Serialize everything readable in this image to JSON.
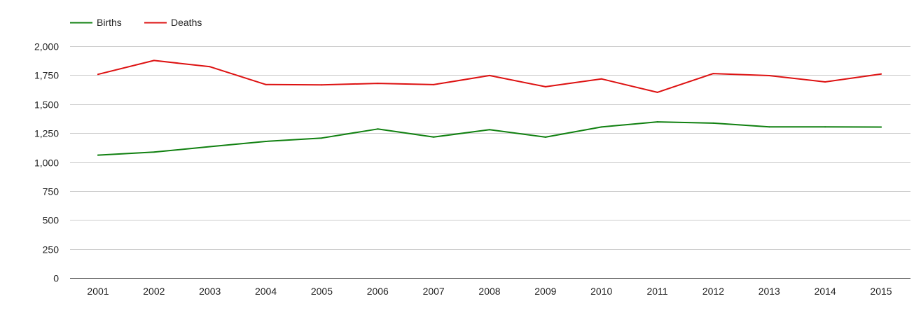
{
  "chart_data": {
    "type": "line",
    "title": "",
    "xlabel": "",
    "ylabel": "",
    "categories": [
      "2001",
      "2002",
      "2003",
      "2004",
      "2005",
      "2006",
      "2007",
      "2008",
      "2009",
      "2010",
      "2011",
      "2012",
      "2013",
      "2014",
      "2015"
    ],
    "series": [
      {
        "name": "Births",
        "color": "#108010",
        "values": [
          1060,
          1086,
          1133,
          1178,
          1207,
          1285,
          1216,
          1280,
          1215,
          1303,
          1347,
          1336,
          1304,
          1304,
          1302
        ]
      },
      {
        "name": "Deaths",
        "color": "#dd1111",
        "values": [
          1757,
          1877,
          1823,
          1669,
          1666,
          1679,
          1668,
          1747,
          1650,
          1718,
          1602,
          1764,
          1746,
          1692,
          1760
        ]
      }
    ],
    "ylim": [
      0,
      2000
    ],
    "yticks": [
      0,
      250,
      500,
      750,
      1000,
      1250,
      1500,
      1750,
      2000
    ],
    "ytick_labels": [
      "0",
      "250",
      "500",
      "750",
      "1,000",
      "1,250",
      "1,500",
      "1,750",
      "2,000"
    ],
    "grid": true,
    "legend_position": "top-left"
  }
}
